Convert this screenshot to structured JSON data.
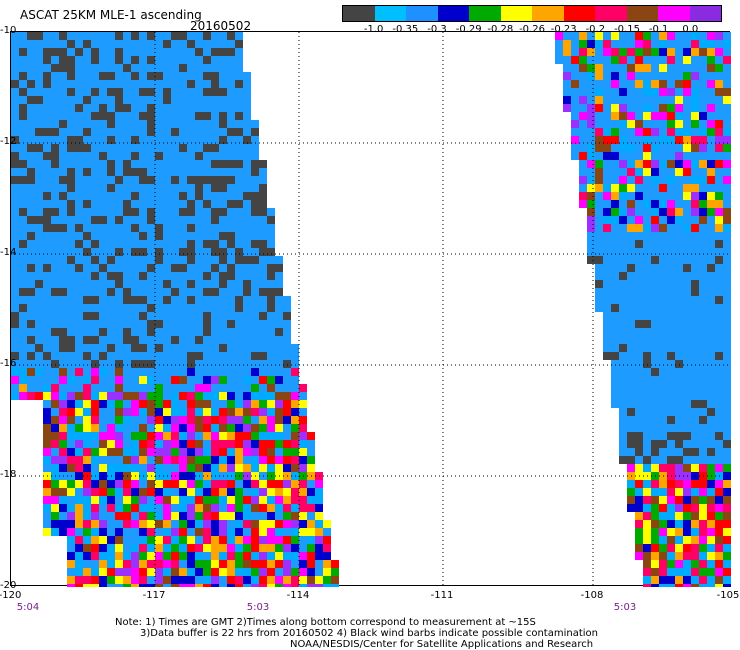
{
  "header": {
    "title": "ASCAT 25KM MLE-1 ascending",
    "date": "20160502"
  },
  "colorbar": {
    "colors": [
      "#444444",
      "#00bfff",
      "#1e90ff",
      "#0000cd",
      "#00aa00",
      "#ffff00",
      "#ffa500",
      "#ff0000",
      "#ff0066",
      "#8b4513",
      "#ff00ff",
      "#8a2be2"
    ],
    "ticks": [
      "-1.0",
      "-0.35",
      "-0.3",
      "-0.29",
      "-0.28",
      "-0.26",
      "-0.23",
      "-0.2",
      "-0.15",
      "-0.1",
      "0.0"
    ]
  },
  "map": {
    "lon_labels": [
      "-120",
      "-117",
      "-114",
      "-111",
      "-108",
      "-105"
    ],
    "lat_labels": [
      "-10",
      "-12",
      "-14",
      "-16",
      "-18",
      "-20"
    ],
    "times": [
      "5:04",
      "5:03",
      "5:03"
    ]
  },
  "notes": {
    "line1": "Note: 1) Times are GMT 2)Times along bottom correspond to measurement at ~15S",
    "line2": "3)Data buffer is 22 hrs from 20160502 4) Black wind barbs indicate possible contamination",
    "line3": "NOAA/NESDIS/Center for Satellite Applications and Research"
  }
}
